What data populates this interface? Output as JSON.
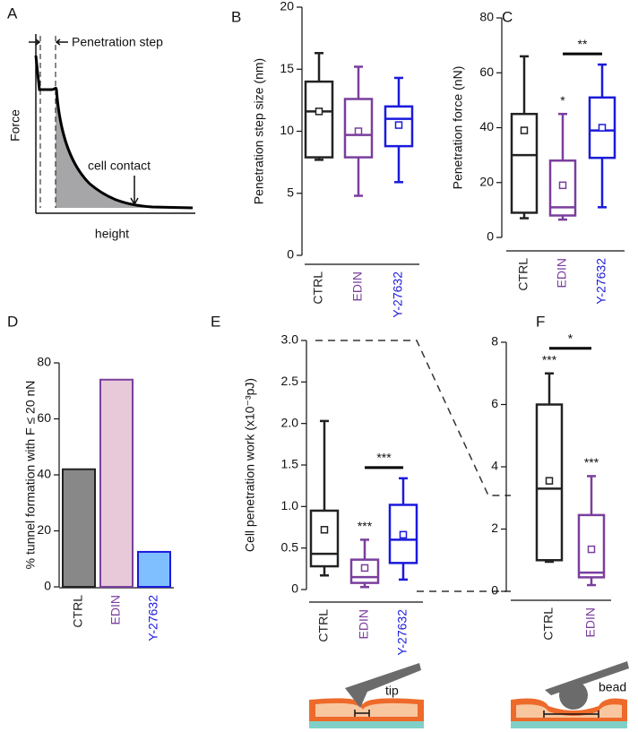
{
  "schematic": {
    "panel": "A",
    "step_label": "Penetration step",
    "contact_label": "cell contact",
    "xlabel": "height",
    "ylabel": "Force"
  },
  "drawings": {
    "tip_label": "tip",
    "bead_label": "bead"
  },
  "chart_data": [
    {
      "type": "box",
      "panel": "B",
      "ylabel": "Penetration step size (nm)",
      "ylim": [
        0,
        20
      ],
      "yticks": [
        0,
        5,
        10,
        15,
        20
      ],
      "categories": [
        "CTRL",
        "EDIN",
        "Y-27632"
      ],
      "boxes": [
        {
          "min": 7.7,
          "q1": 7.9,
          "median": 11.6,
          "q3": 14,
          "max": 16.3,
          "mean": 11.6,
          "color": "#222222"
        },
        {
          "min": 4.8,
          "q1": 7.9,
          "median": 9.7,
          "q3": 12.6,
          "max": 15.2,
          "mean": 10,
          "color": "#7a3f9d"
        },
        {
          "min": 5.9,
          "q1": 8.8,
          "median": 11,
          "q3": 12,
          "max": 14.3,
          "mean": 10.5,
          "color": "#1a1adb"
        }
      ]
    },
    {
      "type": "box",
      "panel": "C",
      "ylabel": "Penetration force (nN)",
      "ylim": [
        0,
        80
      ],
      "yticks": [
        0,
        20,
        40,
        60,
        80
      ],
      "categories": [
        "CTRL",
        "EDIN",
        "Y-27632"
      ],
      "boxes": [
        {
          "min": 7,
          "q1": 9,
          "median": 30,
          "q3": 45,
          "max": 66,
          "mean": 39,
          "color": "#222222"
        },
        {
          "min": 6.5,
          "q1": 8,
          "median": 11,
          "q3": 28,
          "max": 45,
          "mean": 19,
          "color": "#7a3f9d",
          "sig": "*"
        },
        {
          "min": 11,
          "q1": 29,
          "median": 39,
          "q3": 51,
          "max": 63,
          "mean": 40,
          "color": "#1a1adb"
        }
      ],
      "brackets": [
        {
          "label": "**",
          "from": "EDIN",
          "to": "Y-27632"
        }
      ]
    },
    {
      "type": "bar",
      "panel": "D",
      "ylabel": "% tunnel formation with F ≤ 20 nN",
      "ylim": [
        0,
        80
      ],
      "yticks": [
        0,
        20,
        40,
        60,
        80
      ],
      "categories": [
        "CTRL",
        "EDIN",
        "Y-27632"
      ],
      "values": [
        42,
        74,
        12.5
      ],
      "colors": [
        "#888888",
        "#e8c9d9",
        "#7fbfff"
      ],
      "edge_colors": [
        "#222222",
        "#7a3f9d",
        "#1a1adb"
      ]
    },
    {
      "type": "box",
      "panel": "E",
      "ylabel": "Cell penetration work (x10⁻³pJ)",
      "ylim": [
        0,
        3
      ],
      "yticks": [
        0,
        0.5,
        {
          "value": 1,
          "label": "1.0"
        },
        1.5,
        {
          "value": 2,
          "label": "2.0"
        },
        2.5,
        {
          "value": 3,
          "label": "3.0"
        }
      ],
      "categories": [
        "CTRL",
        "EDIN",
        "Y-27632"
      ],
      "boxes": [
        {
          "min": 0.17,
          "q1": 0.28,
          "median": 0.43,
          "q3": 0.95,
          "max": 2.03,
          "mean": 0.72,
          "color": "#222222"
        },
        {
          "min": 0.03,
          "q1": 0.08,
          "median": 0.15,
          "q3": 0.36,
          "max": 0.6,
          "mean": 0.26,
          "color": "#7a3f9d",
          "sig": "***"
        },
        {
          "min": 0.12,
          "q1": 0.32,
          "median": 0.6,
          "q3": 1.02,
          "max": 1.34,
          "mean": 0.66,
          "color": "#1a1adb"
        }
      ],
      "brackets": [
        {
          "label": "***",
          "from": "EDIN",
          "to": "Y-27632"
        }
      ]
    },
    {
      "type": "box",
      "panel": "F",
      "ylim": [
        0,
        8
      ],
      "yticks": [
        0,
        2,
        4,
        6,
        8
      ],
      "categories": [
        "CTRL",
        "EDIN"
      ],
      "boxes": [
        {
          "min": 0.95,
          "q1": 1.0,
          "median": 3.3,
          "q3": 6,
          "max": 7,
          "mean": 3.55,
          "color": "#222222",
          "sig": "***"
        },
        {
          "min": 0.2,
          "q1": 0.45,
          "median": 0.6,
          "q3": 2.45,
          "max": 3.7,
          "mean": 1.35,
          "color": "#7a3f9d",
          "sig": "***"
        }
      ],
      "brackets": [
        {
          "label": "*",
          "from": "CTRL",
          "to": "EDIN"
        }
      ]
    }
  ]
}
